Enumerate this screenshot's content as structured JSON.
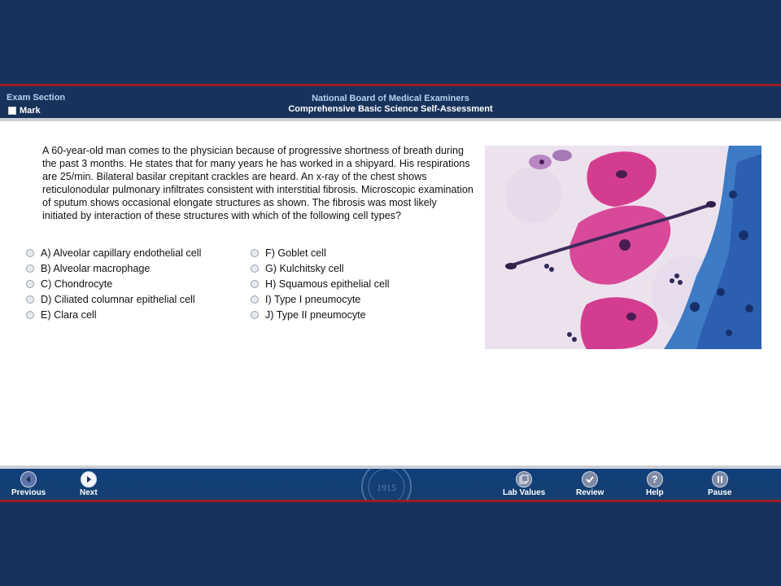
{
  "header": {
    "section": "Exam Section",
    "mark_label": "Mark",
    "org": "National Board of Medical Examiners",
    "title": "Comprehensive Basic Science Self-Assessment"
  },
  "question": {
    "stem": "A 60-year-old man comes to the physician because of progressive shortness of breath during the past 3 months. He states that for many years he has worked in a shipyard. His respirations are 25/min. Bilateral basilar crepitant crackles are heard. An x-ray of the chest shows reticulonodular pulmonary infiltrates consistent with interstitial fibrosis. Microscopic examination of sputum shows occasional elongate structures as shown. The fibrosis was most likely initiated by interaction of these structures with which of the following cell types?",
    "options_left": [
      "A) Alveolar capillary endothelial cell",
      "B) Alveolar macrophage",
      "C) Chondrocyte",
      "D) Ciliated columnar epithelial cell",
      "E) Clara cell"
    ],
    "options_right": [
      "F) Goblet cell",
      "G) Kulchitsky cell",
      "H) Squamous epithelial cell",
      "I) Type I pneumocyte",
      "J) Type II pneumocyte"
    ]
  },
  "footer": {
    "previous": "Previous",
    "next": "Next",
    "lab_values": "Lab Values",
    "review": "Review",
    "help": "Help",
    "pause": "Pause",
    "seal_year": "1915"
  },
  "colors": {
    "navy": "#17335c",
    "accent_red": "#9b1c25",
    "header_label": "#b9cfef"
  }
}
